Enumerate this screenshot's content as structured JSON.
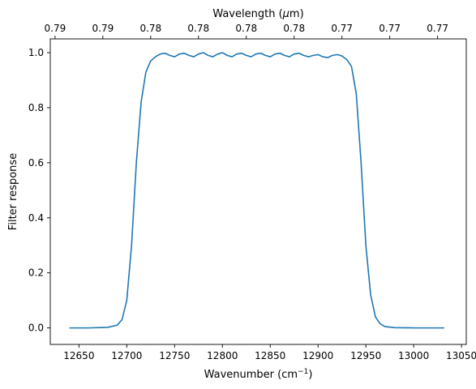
{
  "chart_data": {
    "type": "line",
    "xlabel": "Wavenumber (cm",
    "xlabel_sup": "−1",
    "xlabel_tail": ")",
    "ylabel": "Filter response",
    "top_xlabel": "Wavelength (",
    "top_xlabel_mu": "μ",
    "top_xlabel_tail": "m)",
    "xlim": [
      12620,
      13055
    ],
    "ylim": [
      -0.06,
      1.05
    ],
    "x_ticks": [
      12650,
      12700,
      12750,
      12800,
      12850,
      12900,
      12950,
      13000,
      13050
    ],
    "x_tick_labels": [
      "12650",
      "12700",
      "12750",
      "12800",
      "12850",
      "12900",
      "12950",
      "13000",
      "13050"
    ],
    "y_ticks": [
      0.0,
      0.2,
      0.4,
      0.6,
      0.8,
      1.0
    ],
    "y_tick_labels": [
      "0.0",
      "0.2",
      "0.4",
      "0.6",
      "0.8",
      "1.0"
    ],
    "top_x_ticks": [
      12625,
      12675,
      12725,
      12775,
      12825,
      12875,
      12925,
      12975,
      13025
    ],
    "top_x_tick_labels": [
      "0.79",
      "0.79",
      "0.78",
      "0.78",
      "0.78",
      "0.78",
      "0.77",
      "0.77",
      "0.77"
    ],
    "grid": false,
    "legend": "none",
    "series": [
      {
        "color": "#1f77b4",
        "x": [
          12640,
          12660,
          12680,
          12690,
          12695,
          12700,
          12705,
          12710,
          12715,
          12720,
          12725,
          12730,
          12735,
          12740,
          12745,
          12750,
          12755,
          12760,
          12765,
          12770,
          12775,
          12780,
          12785,
          12790,
          12795,
          12800,
          12805,
          12810,
          12815,
          12820,
          12825,
          12830,
          12835,
          12840,
          12845,
          12850,
          12855,
          12860,
          12865,
          12870,
          12875,
          12880,
          12885,
          12890,
          12895,
          12900,
          12905,
          12910,
          12915,
          12920,
          12925,
          12930,
          12935,
          12940,
          12945,
          12950,
          12955,
          12960,
          12965,
          12970,
          12980,
          13000,
          13032
        ],
        "y": [
          0.0,
          0.0,
          0.002,
          0.01,
          0.03,
          0.1,
          0.3,
          0.6,
          0.82,
          0.93,
          0.97,
          0.985,
          0.995,
          0.998,
          0.99,
          0.985,
          0.995,
          0.998,
          0.99,
          0.985,
          0.995,
          1.0,
          0.99,
          0.985,
          0.995,
          1.0,
          0.99,
          0.985,
          0.995,
          0.998,
          0.99,
          0.985,
          0.995,
          0.998,
          0.99,
          0.985,
          0.995,
          0.998,
          0.99,
          0.985,
          0.995,
          0.998,
          0.99,
          0.985,
          0.99,
          0.993,
          0.985,
          0.982,
          0.99,
          0.993,
          0.988,
          0.975,
          0.95,
          0.85,
          0.6,
          0.3,
          0.12,
          0.04,
          0.015,
          0.005,
          0.001,
          0.0,
          0.0
        ]
      }
    ]
  }
}
